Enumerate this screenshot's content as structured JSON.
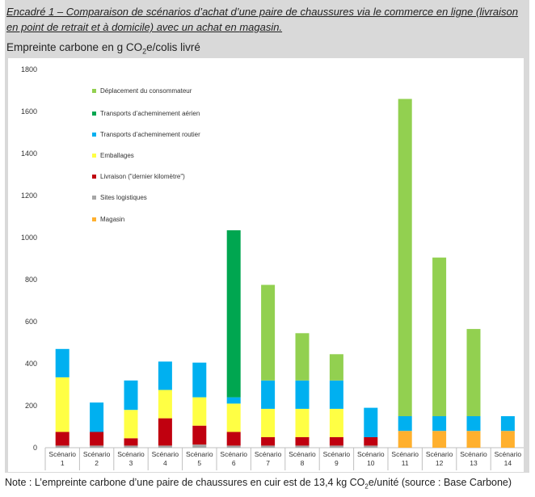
{
  "heading": {
    "part1": "Encadré 1 – Comparaison de scénarios d’achat d’une paire de chaussures via le commerce en ligne (livraison en point de retrait et à domicile) avec un achat en ",
    "part2": "magasin."
  },
  "subtitle": {
    "prefix": "Empreinte carbone en g CO",
    "sub": "2",
    "suffix": "e/colis livré"
  },
  "note": {
    "prefix": "Note : L’empreinte carbone d’une paire de chaussures en cuir est de 13,4 kg CO",
    "sub": "2",
    "suffix": "e/unité (source : Base Carbone)"
  },
  "chart_data": {
    "type": "bar",
    "stacked": true,
    "title": "Empreinte carbone en g CO2e/colis livré",
    "ylim": [
      0,
      1800
    ],
    "yticks": [
      0,
      200,
      400,
      600,
      800,
      1000,
      1200,
      1400,
      1600,
      1800
    ],
    "grid": false,
    "legend_position": "top-left",
    "categories": [
      [
        "Scénario",
        "1"
      ],
      [
        "Scénario",
        "2"
      ],
      [
        "Scénario",
        "3"
      ],
      [
        "Scénario",
        "4"
      ],
      [
        "Scénario",
        "5"
      ],
      [
        "Scénario",
        "6"
      ],
      [
        "Scénario",
        "7"
      ],
      [
        "Scénario",
        "8"
      ],
      [
        "Scénario",
        "9"
      ],
      [
        "Scénario",
        "10"
      ],
      [
        "Scénario",
        "11"
      ],
      [
        "Scénario",
        "12"
      ],
      [
        "Scénario",
        "13"
      ],
      [
        "Scénario",
        "14"
      ]
    ],
    "series": [
      {
        "name": "Sites logistiques",
        "color": "#a6a6a6",
        "values": [
          10,
          10,
          10,
          10,
          15,
          10,
          10,
          10,
          10,
          10,
          0,
          0,
          0,
          0
        ]
      },
      {
        "name": "Livraison (\"dernier kilomètre\")",
        "color": "#c0000f",
        "values": [
          65,
          65,
          35,
          130,
          90,
          65,
          40,
          40,
          40,
          40,
          0,
          0,
          0,
          0
        ]
      },
      {
        "name": "Emballages",
        "color": "#ffff44",
        "values": [
          260,
          0,
          135,
          135,
          135,
          135,
          135,
          135,
          135,
          0,
          0,
          0,
          0,
          0
        ]
      },
      {
        "name": "Magasin",
        "color": "#ffb02e",
        "values": [
          0,
          0,
          0,
          0,
          0,
          0,
          0,
          0,
          0,
          0,
          80,
          80,
          80,
          80
        ]
      },
      {
        "name": "Transports d’acheminement routier",
        "color": "#00b0f0",
        "values": [
          135,
          140,
          140,
          135,
          165,
          30,
          135,
          135,
          135,
          140,
          70,
          70,
          70,
          70
        ]
      },
      {
        "name": "Transports d’acheminement aérien",
        "color": "#00a650",
        "values": [
          0,
          0,
          0,
          0,
          0,
          795,
          0,
          0,
          0,
          0,
          0,
          0,
          0,
          0
        ]
      },
      {
        "name": "Déplacement du consommateur",
        "color": "#92d050",
        "values": [
          0,
          0,
          0,
          0,
          0,
          0,
          455,
          225,
          125,
          0,
          1510,
          755,
          415,
          0
        ]
      }
    ],
    "legend_order": [
      "Déplacement du consommateur",
      "Transports d’acheminement aérien",
      "Transports d’acheminement routier",
      "Emballages",
      "Livraison (\"dernier kilomètre\")",
      "Sites logistiques",
      "Magasin"
    ]
  }
}
